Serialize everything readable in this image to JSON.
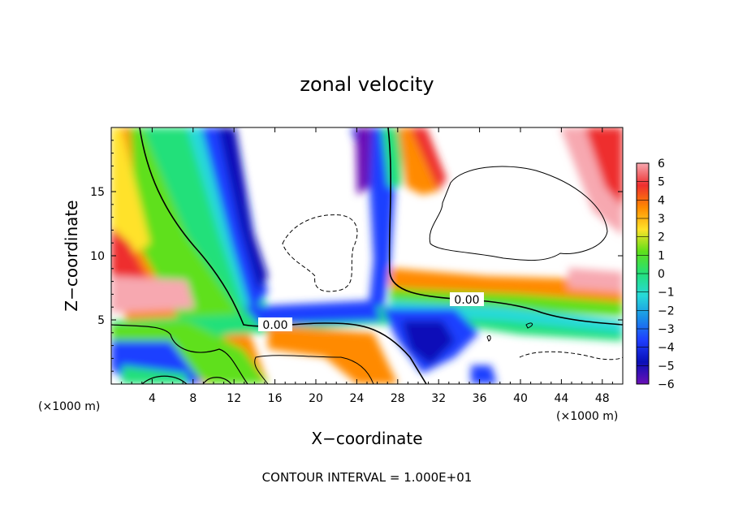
{
  "chart_data": {
    "type": "heatmap",
    "title": "zonal velocity",
    "xlabel": "X−coordinate",
    "ylabel": "Z−coordinate",
    "x_unit_label": "(×1000 m)",
    "xlim": [
      0,
      50
    ],
    "ylim": [
      0,
      20
    ],
    "x_ticks": [
      4,
      8,
      12,
      16,
      20,
      24,
      28,
      32,
      36,
      40,
      44,
      48
    ],
    "y_ticks": [
      5,
      10,
      15
    ],
    "colorbar": {
      "range": [
        -6,
        6
      ],
      "ticks": [
        "6",
        "5",
        "4",
        "3",
        "2",
        "1",
        "0",
        "−1",
        "−2",
        "−3",
        "−4",
        "−5",
        "−6"
      ],
      "colors": [
        "#f7a8b0",
        "#ee2f2f",
        "#ff8a00",
        "#ffe22a",
        "#5fe01a",
        "#23e07a",
        "#28d9d9",
        "#1a8fe8",
        "#1f3fff",
        "#0a10b8",
        "#6a10b5"
      ]
    },
    "contour_labels": [
      {
        "text": "0.00",
        "x": 16.3,
        "y": 4.6
      },
      {
        "text": "0.00",
        "x": 34.5,
        "y": 6.6
      }
    ],
    "annotation": "CONTOUR INTERVAL = 1.000E+01"
  }
}
